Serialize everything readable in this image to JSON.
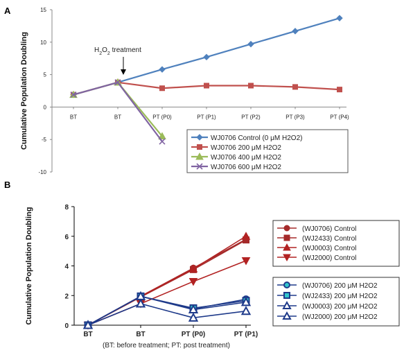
{
  "chart_data": [
    {
      "panel": "A",
      "type": "line",
      "ylabel": "Cumulative Population Doubling",
      "xlabel": "",
      "categories": [
        "BT",
        "BT",
        "PT (P0)",
        "PT (P1)",
        "PT (P2)",
        "PT (P3)",
        "PT (P4)"
      ],
      "yticks": [
        "-10",
        "-5",
        "0",
        "5",
        "10",
        "15"
      ],
      "ylim": [
        -10,
        15
      ],
      "annotation": {
        "prefix": "H",
        "sub": "2",
        "mid": "O",
        "sub2": "2",
        "suffix": " treatment",
        "at_category_index": 1
      },
      "legend_position": "bottom-right",
      "grid": false,
      "series": [
        {
          "name": "WJ0706 Control (0 μM H2O2)",
          "color": "#4f81bd",
          "marker": "diamond",
          "values": [
            1.9,
            3.8,
            5.8,
            7.7,
            9.7,
            11.7,
            13.7
          ]
        },
        {
          "name": "WJ0706 200 μM H2O2",
          "color": "#c0504d",
          "marker": "square",
          "values": [
            1.9,
            3.8,
            2.9,
            3.3,
            3.3,
            3.1,
            2.7
          ]
        },
        {
          "name": "WJ0706 400 μM H2O2",
          "color": "#9bbb59",
          "marker": "triangle",
          "values": [
            1.9,
            3.8,
            -4.5,
            null,
            null,
            null,
            null
          ]
        },
        {
          "name": "WJ0706 600 μM H2O2",
          "color": "#8064a2",
          "marker": "x",
          "values": [
            1.9,
            3.8,
            -5.3,
            null,
            null,
            null,
            null
          ]
        }
      ]
    },
    {
      "panel": "B",
      "type": "line",
      "ylabel": "Cumulative Population Doubling",
      "xlabel": "(BT: before treatment; PT: post treatment)",
      "categories": [
        "BT",
        "BT",
        "PT (P0)",
        "PT (P1)"
      ],
      "yticks": [
        "0",
        "2",
        "4",
        "6",
        "8"
      ],
      "ylim": [
        0,
        8
      ],
      "legend_position": "right",
      "grid": false,
      "series": [
        {
          "name": "(WJ0706) Control",
          "color": "#a52a2a",
          "marker": "circle-filled",
          "values": [
            0,
            1.95,
            3.85,
            5.8
          ]
        },
        {
          "name": "(WJ2433) Control",
          "color": "#a52a2a",
          "marker": "square-filled",
          "values": [
            0,
            1.9,
            3.75,
            5.75
          ]
        },
        {
          "name": "(WJ0003) Control",
          "color": "#b22222",
          "marker": "triangle-filled",
          "values": [
            0,
            1.95,
            3.8,
            6.0
          ]
        },
        {
          "name": "(WJ2000) Control",
          "color": "#b22222",
          "marker": "triangle-down-filled",
          "values": [
            0,
            1.45,
            2.95,
            4.35
          ]
        },
        {
          "name": "(WJ0706) 200 μM H2O2",
          "color": "#1e3a8a",
          "fill": "#33c6cc",
          "marker": "circle-open",
          "values": [
            0,
            1.95,
            1.1,
            1.75
          ]
        },
        {
          "name": "(WJ2433) 200 μM H2O2",
          "color": "#1e3a8a",
          "fill": "#33c6cc",
          "marker": "square-open",
          "values": [
            0,
            1.95,
            1.15,
            1.65
          ]
        },
        {
          "name": "(WJ0003) 200 μM H2O2",
          "color": "#1e3a8a",
          "fill": "none",
          "marker": "triangle-open",
          "values": [
            0,
            1.95,
            1.05,
            1.55
          ]
        },
        {
          "name": "(WJ2000) 200 μM H2O2",
          "color": "#1e3a8a",
          "fill": "none",
          "marker": "triangle-open",
          "values": [
            0,
            1.45,
            0.5,
            0.95
          ]
        }
      ]
    }
  ]
}
